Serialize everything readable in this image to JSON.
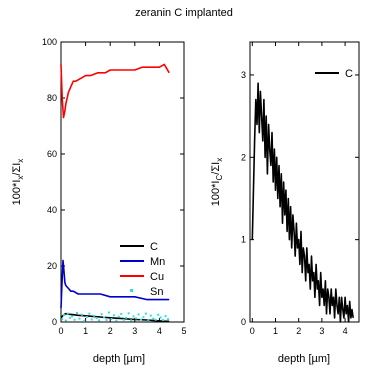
{
  "title": "zeranin C implanted",
  "chart_data": [
    {
      "type": "line",
      "panel": "left",
      "xlabel": "depth [µm]",
      "ylabel_parts": [
        "100*I",
        "x",
        "/ΣI",
        "x"
      ],
      "xlim": [
        0,
        5
      ],
      "ylim": [
        0,
        100
      ],
      "xticks": [
        0,
        1,
        2,
        3,
        4,
        5
      ],
      "yticks": [
        0,
        20,
        40,
        60,
        80,
        100
      ],
      "xtick_labels": [
        "0",
        "1",
        "2",
        "3",
        "4",
        "5"
      ],
      "ytick_labels": [
        "0",
        "20",
        "40",
        "60",
        "80",
        "100"
      ],
      "legend_position": "bottom-right",
      "series": [
        {
          "name": "Cu",
          "color": "#ff0000",
          "style": "line",
          "x": [
            0.0,
            0.05,
            0.1,
            0.15,
            0.2,
            0.3,
            0.4,
            0.5,
            0.6,
            0.8,
            1.0,
            1.2,
            1.5,
            1.8,
            2.0,
            2.3,
            2.6,
            3.0,
            3.3,
            3.6,
            4.0,
            4.2,
            4.4
          ],
          "y": [
            92,
            80,
            73,
            75,
            78,
            82,
            84,
            86,
            86,
            87,
            88,
            88,
            89,
            89,
            90,
            90,
            90,
            90,
            91,
            91,
            91,
            92,
            89
          ]
        },
        {
          "name": "Mn",
          "color": "#0000cc",
          "style": "line",
          "x": [
            0.0,
            0.04,
            0.08,
            0.12,
            0.16,
            0.2,
            0.3,
            0.4,
            0.5,
            0.7,
            1.0,
            1.3,
            1.6,
            2.0,
            2.5,
            3.0,
            3.5,
            4.0,
            4.4
          ],
          "y": [
            5,
            14,
            22,
            18,
            14,
            13,
            12,
            11,
            11,
            10,
            10,
            10,
            10,
            9,
            9,
            9,
            8,
            8,
            8
          ]
        },
        {
          "name": "C",
          "color": "#000000",
          "style": "line",
          "x": [
            0.0,
            0.1,
            0.2,
            0.3,
            0.5,
            0.7,
            1.0,
            1.3,
            1.6,
            2.0,
            2.5,
            3.0,
            3.5,
            4.0,
            4.4
          ],
          "y": [
            1.5,
            2.5,
            3.0,
            2.8,
            2.6,
            2.4,
            2.2,
            2.0,
            1.8,
            1.5,
            1.2,
            0.9,
            0.7,
            0.4,
            0.2
          ]
        },
        {
          "name": "Sn",
          "color": "#33dddd",
          "style": "scatter",
          "x": [
            0.05,
            0.12,
            0.2,
            0.28,
            0.36,
            0.45,
            0.55,
            0.65,
            0.75,
            0.85,
            0.95,
            1.05,
            1.15,
            1.25,
            1.35,
            1.45,
            1.55,
            1.65,
            1.75,
            1.85,
            1.95,
            2.05,
            2.15,
            2.25,
            2.35,
            2.45,
            2.55,
            2.65,
            2.75,
            2.85,
            2.95,
            3.05,
            3.15,
            3.25,
            3.35,
            3.45,
            3.55,
            3.65,
            3.75,
            3.85,
            3.95,
            4.05,
            4.15,
            4.25,
            4.35
          ],
          "y": [
            1.0,
            2.5,
            0.5,
            3.0,
            1.5,
            2.0,
            0.8,
            3.2,
            1.2,
            2.6,
            0.4,
            1.8,
            3.0,
            0.9,
            2.2,
            1.4,
            0.6,
            2.8,
            1.6,
            0.7,
            3.4,
            1.1,
            2.4,
            0.5,
            1.9,
            2.9,
            0.8,
            1.5,
            3.1,
            0.6,
            2.0,
            1.3,
            2.7,
            0.9,
            1.7,
            3.0,
            0.5,
            2.3,
            1.2,
            0.8,
            2.6,
            1.6,
            0.7,
            2.1,
            1.0
          ]
        }
      ]
    },
    {
      "type": "line",
      "panel": "right",
      "xlabel": "depth [µm]",
      "ylabel_parts": [
        "100*I",
        "C",
        "/ΣI",
        "x"
      ],
      "xlim": [
        -0.1,
        4.6
      ],
      "ylim": [
        0,
        3.4
      ],
      "xticks": [
        0,
        1,
        2,
        3,
        4
      ],
      "yticks": [
        0,
        1,
        2,
        3
      ],
      "xtick_labels": [
        "0",
        "1",
        "2",
        "3",
        "4"
      ],
      "ytick_labels": [
        "0",
        "1",
        "2",
        "3"
      ],
      "legend_position": "top-right",
      "series": [
        {
          "name": "C",
          "color": "#000000",
          "style": "line",
          "x": [
            0.0,
            0.1,
            0.15,
            0.2,
            0.25,
            0.3,
            0.35,
            0.4,
            0.45,
            0.5,
            0.55,
            0.6,
            0.65,
            0.7,
            0.75,
            0.8,
            0.85,
            0.9,
            0.95,
            1.0,
            1.05,
            1.1,
            1.15,
            1.2,
            1.25,
            1.3,
            1.35,
            1.4,
            1.45,
            1.5,
            1.55,
            1.6,
            1.65,
            1.7,
            1.75,
            1.8,
            1.85,
            1.9,
            1.95,
            2.0,
            2.05,
            2.1,
            2.15,
            2.2,
            2.25,
            2.3,
            2.35,
            2.4,
            2.45,
            2.5,
            2.55,
            2.6,
            2.65,
            2.7,
            2.75,
            2.8,
            2.85,
            2.9,
            2.95,
            3.0,
            3.05,
            3.1,
            3.15,
            3.2,
            3.25,
            3.3,
            3.35,
            3.4,
            3.45,
            3.5,
            3.55,
            3.6,
            3.65,
            3.7,
            3.75,
            3.8,
            3.85,
            3.9,
            3.95,
            4.0,
            4.05,
            4.1,
            4.15,
            4.2,
            4.25,
            4.3,
            4.35
          ],
          "y": [
            1.0,
            2.2,
            2.7,
            2.4,
            2.9,
            2.3,
            2.8,
            2.5,
            2.2,
            2.7,
            2.0,
            2.5,
            1.8,
            2.4,
            2.1,
            1.9,
            2.3,
            1.7,
            2.1,
            1.6,
            2.0,
            1.5,
            1.9,
            1.4,
            1.8,
            1.2,
            1.7,
            1.3,
            1.6,
            1.1,
            1.5,
            1.0,
            1.4,
            0.9,
            1.3,
            1.1,
            0.8,
            1.2,
            0.9,
            1.0,
            0.7,
            1.1,
            0.6,
            0.9,
            0.8,
            0.5,
            0.9,
            0.6,
            0.7,
            0.4,
            0.8,
            0.5,
            0.6,
            0.3,
            0.7,
            0.4,
            0.5,
            0.2,
            0.6,
            0.3,
            0.4,
            0.2,
            0.5,
            0.1,
            0.4,
            0.3,
            0.1,
            0.4,
            0.2,
            0.3,
            0.05,
            0.4,
            0.2,
            0.1,
            0.3,
            0.0,
            0.3,
            0.15,
            0.05,
            0.3,
            0.1,
            0.2,
            0.0,
            0.25,
            0.05,
            0.15,
            0.05
          ]
        }
      ]
    }
  ]
}
